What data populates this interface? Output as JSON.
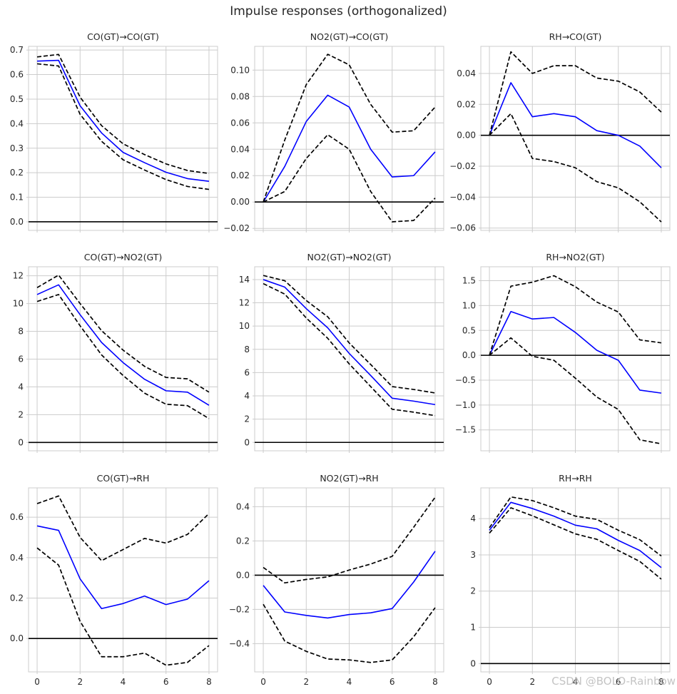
{
  "figure": {
    "title": "Impulse responses (orthogonalized)",
    "watermark": "CSDN @BOLO-Rainbow"
  },
  "colors": {
    "response": "#0000ff",
    "bounds": "#000000",
    "zero_line": "#000000",
    "grid": "#cccccc",
    "frame": "#cccccc"
  },
  "chart_data": [
    {
      "type": "line",
      "title": "CO(GT)→CO(GT)",
      "x": [
        0,
        1,
        2,
        3,
        4,
        5,
        6,
        7,
        8
      ],
      "series": [
        {
          "name": "response",
          "values": [
            0.655,
            0.658,
            0.473,
            0.362,
            0.283,
            0.241,
            0.202,
            0.176,
            0.165
          ]
        },
        {
          "name": "upper",
          "values": [
            0.672,
            0.682,
            0.508,
            0.392,
            0.318,
            0.274,
            0.236,
            0.209,
            0.197
          ]
        },
        {
          "name": "lower",
          "values": [
            0.644,
            0.635,
            0.438,
            0.328,
            0.253,
            0.211,
            0.172,
            0.144,
            0.132
          ]
        }
      ],
      "yticks": [
        0.0,
        0.1,
        0.2,
        0.3,
        0.4,
        0.5,
        0.6,
        0.7
      ],
      "ytick_labels": [
        "0.0",
        "0.1",
        "0.2",
        "0.3",
        "0.4",
        "0.5",
        "0.6",
        "0.7"
      ],
      "xticks": [
        0,
        2,
        4,
        6,
        8
      ],
      "ylim": [
        -0.035,
        0.715
      ],
      "xlim": [
        -0.4,
        8.4
      ],
      "show_xticks": false
    },
    {
      "type": "line",
      "title": "NO2(GT)→CO(GT)",
      "x": [
        0,
        1,
        2,
        3,
        4,
        5,
        6,
        7,
        8
      ],
      "series": [
        {
          "name": "response",
          "values": [
            0.0,
            0.027,
            0.061,
            0.081,
            0.072,
            0.04,
            0.019,
            0.02,
            0.038
          ]
        },
        {
          "name": "upper",
          "values": [
            0.0,
            0.047,
            0.089,
            0.112,
            0.104,
            0.074,
            0.053,
            0.054,
            0.072
          ]
        },
        {
          "name": "lower",
          "values": [
            0.0,
            0.008,
            0.033,
            0.051,
            0.04,
            0.008,
            -0.015,
            -0.014,
            0.003
          ]
        }
      ],
      "yticks": [
        -0.02,
        0.0,
        0.02,
        0.04,
        0.06,
        0.08,
        0.1
      ],
      "ytick_labels": [
        "−0.02",
        "0.00",
        "0.02",
        "0.04",
        "0.06",
        "0.08",
        "0.10"
      ],
      "xticks": [
        0,
        2,
        4,
        6,
        8
      ],
      "ylim": [
        -0.0215,
        0.118
      ],
      "xlim": [
        -0.4,
        8.4
      ],
      "show_xticks": false
    },
    {
      "type": "line",
      "title": "RH→CO(GT)",
      "x": [
        0,
        1,
        2,
        3,
        4,
        5,
        6,
        7,
        8
      ],
      "series": [
        {
          "name": "response",
          "values": [
            0.0,
            0.034,
            0.012,
            0.014,
            0.012,
            0.003,
            0.0,
            -0.007,
            -0.021
          ]
        },
        {
          "name": "upper",
          "values": [
            0.0,
            0.054,
            0.04,
            0.045,
            0.045,
            0.037,
            0.035,
            0.028,
            0.015
          ]
        },
        {
          "name": "lower",
          "values": [
            0.0,
            0.014,
            -0.015,
            -0.017,
            -0.021,
            -0.03,
            -0.034,
            -0.043,
            -0.056
          ]
        }
      ],
      "yticks": [
        -0.06,
        -0.04,
        -0.02,
        0.0,
        0.02,
        0.04
      ],
      "ytick_labels": [
        "−0.06",
        "−0.04",
        "−0.02",
        "0.00",
        "0.02",
        "0.04"
      ],
      "xticks": [
        0,
        2,
        4,
        6,
        8
      ],
      "ylim": [
        -0.0615,
        0.0575
      ],
      "xlim": [
        -0.4,
        8.4
      ],
      "show_xticks": false
    },
    {
      "type": "line",
      "title": "CO(GT)→NO2(GT)",
      "x": [
        0,
        1,
        2,
        3,
        4,
        5,
        6,
        7,
        8
      ],
      "series": [
        {
          "name": "response",
          "values": [
            10.65,
            11.35,
            9.2,
            7.2,
            5.75,
            4.55,
            3.72,
            3.62,
            2.68
          ]
        },
        {
          "name": "upper",
          "values": [
            11.15,
            12.05,
            10.0,
            8.05,
            6.65,
            5.48,
            4.68,
            4.58,
            3.62
          ]
        },
        {
          "name": "lower",
          "values": [
            10.15,
            10.65,
            8.4,
            6.3,
            4.82,
            3.55,
            2.75,
            2.65,
            1.72
          ]
        }
      ],
      "yticks": [
        0,
        2,
        4,
        6,
        8,
        10,
        12
      ],
      "ytick_labels": [
        "0",
        "2",
        "4",
        "6",
        "8",
        "10",
        "12"
      ],
      "xticks": [
        0,
        2,
        4,
        6,
        8
      ],
      "ylim": [
        -0.6,
        12.65
      ],
      "xlim": [
        -0.4,
        8.4
      ],
      "show_xticks": false
    },
    {
      "type": "line",
      "title": "NO2(GT)→NO2(GT)",
      "x": [
        0,
        1,
        2,
        3,
        4,
        5,
        6,
        7,
        8
      ],
      "series": [
        {
          "name": "response",
          "values": [
            14.0,
            13.35,
            11.5,
            9.85,
            7.65,
            5.75,
            3.8,
            3.55,
            3.25
          ]
        },
        {
          "name": "upper",
          "values": [
            14.35,
            13.9,
            12.2,
            10.8,
            8.55,
            6.7,
            4.8,
            4.55,
            4.25
          ]
        },
        {
          "name": "lower",
          "values": [
            13.65,
            12.75,
            10.7,
            8.95,
            6.75,
            4.8,
            2.85,
            2.6,
            2.3
          ]
        }
      ],
      "yticks": [
        0,
        2,
        4,
        6,
        8,
        10,
        12,
        14
      ],
      "ytick_labels": [
        "0",
        "2",
        "4",
        "6",
        "8",
        "10",
        "12",
        "14"
      ],
      "xticks": [
        0,
        2,
        4,
        6,
        8
      ],
      "ylim": [
        -0.72,
        15.1
      ],
      "xlim": [
        -0.4,
        8.4
      ],
      "show_xticks": false
    },
    {
      "type": "line",
      "title": "RH→NO2(GT)",
      "x": [
        0,
        1,
        2,
        3,
        4,
        5,
        6,
        7,
        8
      ],
      "series": [
        {
          "name": "response",
          "values": [
            0.0,
            0.88,
            0.73,
            0.76,
            0.46,
            0.1,
            -0.1,
            -0.7,
            -0.76
          ]
        },
        {
          "name": "upper",
          "values": [
            0.0,
            1.39,
            1.47,
            1.6,
            1.38,
            1.07,
            0.87,
            0.31,
            0.25
          ]
        },
        {
          "name": "lower",
          "values": [
            0.0,
            0.35,
            -0.02,
            -0.1,
            -0.46,
            -0.84,
            -1.09,
            -1.7,
            -1.78
          ]
        }
      ],
      "yticks": [
        -1.5,
        -1.0,
        -0.5,
        0.0,
        0.5,
        1.0,
        1.5
      ],
      "ytick_labels": [
        "−1.5",
        "−1.0",
        "−0.5",
        "0.0",
        "0.5",
        "1.0",
        "1.5"
      ],
      "xticks": [
        0,
        2,
        4,
        6,
        8
      ],
      "ylim": [
        -1.92,
        1.78
      ],
      "xlim": [
        -0.4,
        8.4
      ],
      "show_xticks": false
    },
    {
      "type": "line",
      "title": "CO(GT)→RH",
      "x": [
        0,
        1,
        2,
        3,
        4,
        5,
        6,
        7,
        8
      ],
      "series": [
        {
          "name": "response",
          "values": [
            0.557,
            0.535,
            0.295,
            0.148,
            0.173,
            0.21,
            0.168,
            0.195,
            0.286
          ]
        },
        {
          "name": "upper",
          "values": [
            0.667,
            0.705,
            0.5,
            0.385,
            0.44,
            0.495,
            0.472,
            0.515,
            0.618
          ]
        },
        {
          "name": "lower",
          "values": [
            0.448,
            0.363,
            0.085,
            -0.09,
            -0.09,
            -0.072,
            -0.132,
            -0.118,
            -0.035
          ]
        }
      ],
      "yticks": [
        0.0,
        0.2,
        0.4,
        0.6
      ],
      "ytick_labels": [
        "0.0",
        "0.2",
        "0.4",
        "0.6"
      ],
      "xticks": [
        0,
        2,
        4,
        6,
        8
      ],
      "xtick_labels": [
        "0",
        "2",
        "4",
        "6",
        "8"
      ],
      "ylim": [
        -0.165,
        0.745
      ],
      "xlim": [
        -0.4,
        8.4
      ],
      "show_xticks": true
    },
    {
      "type": "line",
      "title": "NO2(GT)→RH",
      "x": [
        0,
        1,
        2,
        3,
        4,
        5,
        6,
        7,
        8
      ],
      "series": [
        {
          "name": "response",
          "values": [
            -0.06,
            -0.215,
            -0.235,
            -0.25,
            -0.23,
            -0.22,
            -0.195,
            -0.04,
            0.14
          ]
        },
        {
          "name": "upper",
          "values": [
            0.045,
            -0.045,
            -0.025,
            -0.01,
            0.03,
            0.065,
            0.11,
            0.28,
            0.455
          ]
        },
        {
          "name": "lower",
          "values": [
            -0.17,
            -0.385,
            -0.445,
            -0.49,
            -0.495,
            -0.51,
            -0.495,
            -0.36,
            -0.19
          ]
        }
      ],
      "yticks": [
        -0.4,
        -0.2,
        0.0,
        0.2,
        0.4
      ],
      "ytick_labels": [
        "−0.4",
        "−0.2",
        "0.0",
        "0.2",
        "0.4"
      ],
      "xticks": [
        0,
        2,
        4,
        6,
        8
      ],
      "xtick_labels": [
        "0",
        "2",
        "4",
        "6",
        "8"
      ],
      "ylim": [
        -0.565,
        0.51
      ],
      "xlim": [
        -0.4,
        8.4
      ],
      "show_xticks": true
    },
    {
      "type": "line",
      "title": "RH→RH",
      "x": [
        0,
        1,
        2,
        3,
        4,
        5,
        6,
        7,
        8
      ],
      "series": [
        {
          "name": "response",
          "values": [
            3.68,
            4.45,
            4.28,
            4.07,
            3.82,
            3.72,
            3.4,
            3.12,
            2.65
          ]
        },
        {
          "name": "upper",
          "values": [
            3.75,
            4.6,
            4.5,
            4.3,
            4.07,
            3.98,
            3.68,
            3.42,
            2.97
          ]
        },
        {
          "name": "lower",
          "values": [
            3.6,
            4.3,
            4.08,
            3.83,
            3.58,
            3.43,
            3.12,
            2.82,
            2.33
          ]
        }
      ],
      "yticks": [
        0,
        1,
        2,
        3,
        4
      ],
      "ytick_labels": [
        "0",
        "1",
        "2",
        "3",
        "4"
      ],
      "xticks": [
        0,
        2,
        4,
        6,
        8
      ],
      "xtick_labels": [
        "0",
        "2",
        "4",
        "6",
        "8"
      ],
      "ylim": [
        -0.23,
        4.85
      ],
      "xlim": [
        -0.4,
        8.4
      ],
      "show_xticks": true
    }
  ]
}
